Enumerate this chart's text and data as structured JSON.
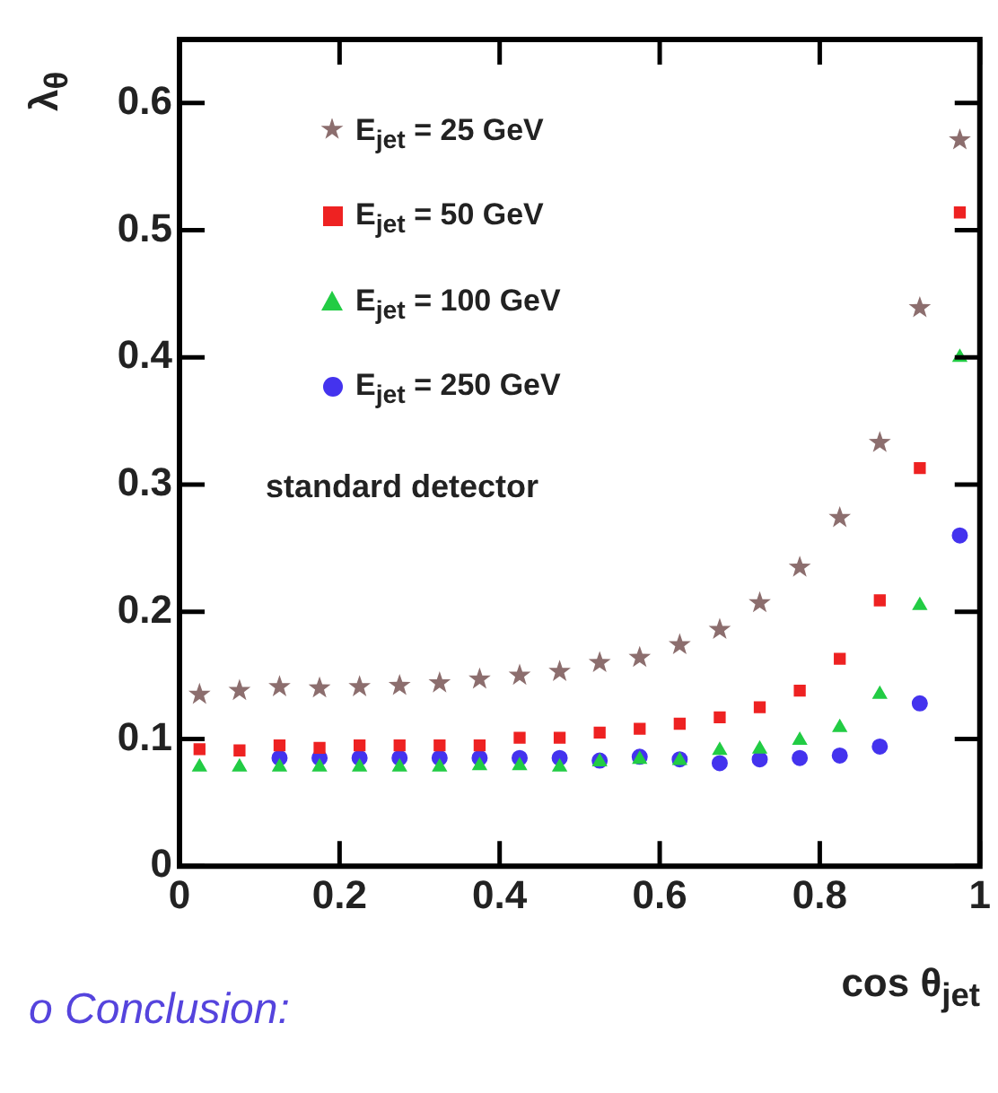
{
  "chart_data": {
    "type": "scatter",
    "xlabel": "cos θ$_{jet}$",
    "ylabel": "λ$_{θ}$",
    "x": [
      0.025,
      0.075,
      0.125,
      0.175,
      0.225,
      0.275,
      0.325,
      0.375,
      0.425,
      0.475,
      0.525,
      0.575,
      0.625,
      0.675,
      0.725,
      0.775,
      0.825,
      0.875,
      0.925,
      0.975
    ],
    "series": [
      {
        "name": "E$_{jet}$ =  25 GeV",
        "color": "#8c6e6e",
        "marker": "star",
        "values": [
          0.135,
          0.138,
          0.141,
          0.14,
          0.141,
          0.142,
          0.144,
          0.147,
          0.15,
          0.153,
          0.16,
          0.164,
          0.174,
          0.186,
          0.207,
          0.235,
          0.274,
          0.333,
          0.439,
          0.571
        ]
      },
      {
        "name": "E$_{jet}$ =  50 GeV",
        "color": "#ee2222",
        "marker": "square",
        "values": [
          0.092,
          0.091,
          0.095,
          0.093,
          0.095,
          0.095,
          0.095,
          0.095,
          0.101,
          0.101,
          0.105,
          0.108,
          0.112,
          0.117,
          0.125,
          0.138,
          0.163,
          0.209,
          0.313,
          0.514
        ]
      },
      {
        "name": "E$_{jet}$ = 100 GeV",
        "color": "#22cc44",
        "marker": "triangle",
        "values": [
          0.078,
          0.078,
          0.078,
          0.078,
          0.078,
          0.078,
          0.078,
          0.079,
          0.079,
          0.078,
          0.082,
          0.084,
          0.083,
          0.091,
          0.092,
          0.099,
          0.109,
          0.135,
          0.205,
          0.4
        ]
      },
      {
        "name": "E$_{jet}$ = 250 GeV",
        "color": "#4433ee",
        "marker": "circle",
        "values": [
          null,
          null,
          0.085,
          0.085,
          0.085,
          0.085,
          0.085,
          0.085,
          0.085,
          0.085,
          0.083,
          0.086,
          0.084,
          0.081,
          0.084,
          0.085,
          0.087,
          0.094,
          0.128,
          0.26
        ]
      }
    ],
    "xlim": [
      0,
      1
    ],
    "xticks": [
      0,
      0.2,
      0.4,
      0.6,
      0.8,
      1
    ],
    "ylim": [
      0,
      0.65
    ],
    "yticks": [
      0,
      0.1,
      0.2,
      0.3,
      0.4,
      0.5,
      0.6
    ],
    "grid": false,
    "legend": "top left",
    "annotations": [
      "standard detector",
      "o Conclusion:"
    ]
  }
}
